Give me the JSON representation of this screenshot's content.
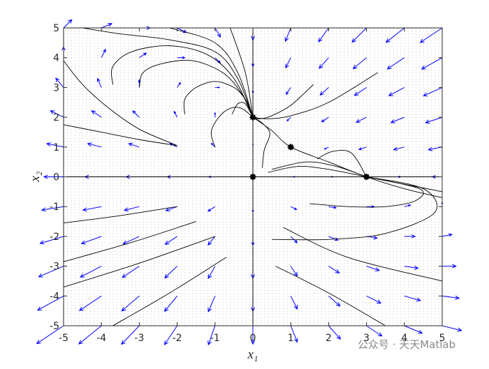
{
  "chart_data": {
    "type": "phase-portrait",
    "xlabel": "x₁",
    "ylabel": "x₂",
    "xlim": [
      -5,
      5
    ],
    "ylim": [
      -5,
      5
    ],
    "xticks": [
      -5,
      -4,
      -3,
      -2,
      -1,
      0,
      1,
      2,
      3,
      4,
      5
    ],
    "yticks": [
      -5,
      -4,
      -3,
      -2,
      -1,
      0,
      1,
      2,
      3,
      4,
      5
    ],
    "quiver_color": "#0000ff",
    "trajectory_color": "#000000",
    "quiver": {
      "x": [
        -5,
        -4,
        -3,
        -2,
        -1,
        0,
        1,
        2,
        3,
        4,
        5
      ],
      "y": [
        -5,
        -4,
        -3,
        -2,
        -1,
        0,
        1,
        2,
        3,
        4,
        5
      ],
      "u": [
        [
          -90,
          -68,
          -48,
          -30,
          -14,
          0,
          12,
          22,
          30,
          36,
          40
        ],
        [
          -80,
          -60,
          -42,
          -26,
          -12,
          0,
          10,
          18,
          24,
          28,
          30
        ],
        [
          -70,
          -52,
          -36,
          -22,
          -10,
          0,
          8,
          14,
          18,
          20,
          20
        ],
        [
          -60,
          -44,
          -30,
          -18,
          -8,
          0,
          6,
          10,
          12,
          12,
          10
        ],
        [
          -50,
          -36,
          -24,
          -14,
          -6,
          0,
          4,
          6,
          6,
          4,
          0
        ],
        [
          -40,
          -28,
          -18,
          -10,
          -4,
          0,
          2,
          2,
          0,
          -4,
          -10
        ],
        [
          -30,
          -20,
          -12,
          -6,
          -2,
          0,
          0,
          -2,
          -6,
          -12,
          -20
        ],
        [
          -20,
          -12,
          -6,
          -2,
          0,
          0,
          -2,
          -6,
          -12,
          -20,
          -30
        ],
        [
          -10,
          -4,
          0,
          2,
          2,
          0,
          -4,
          -10,
          -18,
          -28,
          -40
        ],
        [
          0,
          4,
          6,
          6,
          4,
          0,
          -6,
          -14,
          -24,
          -36,
          -50
        ],
        [
          10,
          12,
          12,
          10,
          6,
          0,
          -8,
          -18,
          -30,
          -44,
          -60
        ]
      ],
      "v": [
        [
          -60,
          -55,
          -50,
          -45,
          -40,
          -35,
          -30,
          -25,
          -20,
          -15,
          -10
        ],
        [
          -44,
          -40,
          -36,
          -32,
          -28,
          -24,
          -20,
          -16,
          -12,
          -8,
          -4
        ],
        [
          -30,
          -27,
          -24,
          -21,
          -18,
          -15,
          -12,
          -9,
          -6,
          -3,
          0
        ],
        [
          -18,
          -16,
          -14,
          -12,
          -10,
          -8,
          -6,
          -4,
          -2,
          0,
          2
        ],
        [
          -8,
          -7,
          -6,
          -5,
          -4,
          -3,
          -2,
          -1,
          0,
          1,
          2
        ],
        [
          0,
          0,
          0,
          0,
          0,
          0,
          0,
          0,
          0,
          0,
          0
        ],
        [
          6,
          5,
          4,
          3,
          2,
          1,
          0,
          -1,
          -2,
          -3,
          -4
        ],
        [
          10,
          8,
          6,
          4,
          2,
          0,
          -2,
          -4,
          -6,
          -8,
          -10
        ],
        [
          12,
          9,
          6,
          3,
          0,
          -3,
          -6,
          -9,
          -12,
          -15,
          -18
        ],
        [
          12,
          8,
          4,
          0,
          -4,
          -8,
          -12,
          -16,
          -20,
          -24,
          -28
        ],
        [
          10,
          5,
          0,
          -5,
          -10,
          -15,
          -20,
          -25,
          -30,
          -35,
          -40
        ]
      ]
    },
    "trajectories": [
      {
        "x": [
          0,
          0
        ],
        "y": [
          -5,
          5
        ]
      },
      {
        "x": [
          -5,
          5
        ],
        "y": [
          0,
          0
        ]
      },
      {
        "x": [
          -1,
          -1.1,
          -0.9,
          -0.6,
          -0.3,
          0
        ],
        "y": [
          1,
          1.5,
          2.0,
          2.3,
          2.3,
          2
        ]
      },
      {
        "x": [
          -0.55,
          -0.4,
          -0.2,
          0
        ],
        "y": [
          2.1,
          2.45,
          2.45,
          2
        ]
      },
      {
        "x": [
          -1.8,
          -1.8,
          -1.5,
          -1.0,
          -0.5,
          -0.2,
          0
        ],
        "y": [
          2.1,
          2.6,
          3.0,
          3.2,
          3.0,
          2.6,
          2
        ]
      },
      {
        "x": [
          -3,
          -2.9,
          -2.4,
          -1.6,
          -0.8,
          -0.3,
          0
        ],
        "y": [
          3,
          3.5,
          3.8,
          3.9,
          3.5,
          2.8,
          2
        ]
      },
      {
        "x": [
          -3.7,
          -3.7,
          -3.2,
          -2.2,
          -1.2,
          -0.5,
          0
        ],
        "y": [
          3.1,
          3.7,
          4.2,
          4.4,
          4.1,
          3.3,
          2
        ]
      },
      {
        "x": [
          -4.5,
          -3.5,
          -2.2,
          -1.0,
          -0.4,
          0
        ],
        "y": [
          5,
          4.8,
          4.6,
          4.2,
          3.3,
          2
        ]
      },
      {
        "x": [
          -2.2,
          -1.0,
          -0.4,
          0
        ],
        "y": [
          5,
          4.5,
          3.5,
          2
        ]
      },
      {
        "x": [
          -0.6,
          -0.2,
          0
        ],
        "y": [
          5,
          3.5,
          2
        ]
      },
      {
        "x": [
          -5,
          -4.5,
          -3.8,
          -3.0,
          -2.0
        ],
        "y": [
          3.9,
          3.1,
          2.3,
          1.6,
          1.05
        ]
      },
      {
        "x": [
          -5,
          -4,
          -3,
          -2
        ],
        "y": [
          1.75,
          1.5,
          1.25,
          1.05
        ]
      },
      {
        "x": [
          0,
          0.5,
          1,
          2,
          3,
          4,
          5
        ],
        "y": [
          2,
          1.55,
          1,
          0.5,
          0,
          -0.4,
          -0.7
        ]
      },
      {
        "x": [
          3.3,
          2.0,
          1.0,
          0.4,
          0
        ],
        "y": [
          3.5,
          2.5,
          2.05,
          1.95,
          2
        ]
      },
      {
        "x": [
          1.6,
          1.0,
          0.5,
          0.2,
          0
        ],
        "y": [
          3.1,
          2.4,
          2.05,
          1.95,
          2
        ]
      },
      {
        "x": [
          0.25,
          0.3,
          0.45,
          0.25,
          0
        ],
        "y": [
          0.3,
          0.9,
          1.45,
          1.8,
          2
        ]
      },
      {
        "x": [
          0.4,
          1.2,
          2.0,
          3
        ],
        "y": [
          0.15,
          0.35,
          0.25,
          0
        ]
      },
      {
        "x": [
          0.5,
          1.4,
          2.2,
          3
        ],
        "y": [
          0.25,
          0.5,
          0.35,
          0
        ]
      },
      {
        "x": [
          1.7,
          2.1,
          2.6,
          3
        ],
        "y": [
          0.6,
          0.85,
          0.8,
          0
        ]
      },
      {
        "x": [
          1.5,
          2.5,
          3.5,
          4.3,
          4.4,
          3
        ],
        "y": [
          -0.9,
          -1.0,
          -1.0,
          -0.8,
          -0.4,
          0
        ]
      },
      {
        "x": [
          0.5,
          2,
          3.5,
          4.8,
          4.5,
          3
        ],
        "y": [
          -2.1,
          -2.1,
          -1.9,
          -1.2,
          -0.4,
          0
        ]
      },
      {
        "x": [
          5,
          4,
          3
        ],
        "y": [
          -0.5,
          -0.25,
          0
        ]
      },
      {
        "x": [
          -2,
          -3.5,
          -5
        ],
        "y": [
          -1.0,
          -1.3,
          -1.55
        ]
      },
      {
        "x": [
          -1.5,
          -3.2,
          -5
        ],
        "y": [
          -1.5,
          -2.2,
          -2.85
        ]
      },
      {
        "x": [
          -1,
          -3,
          -5
        ],
        "y": [
          -2,
          -2.9,
          -3.7
        ]
      },
      {
        "x": [
          -0.7,
          -2.2,
          -3.7
        ],
        "y": [
          -2.7,
          -3.9,
          -5
        ]
      },
      {
        "x": [
          0.8,
          2.5,
          5
        ],
        "y": [
          -1.7,
          -2.7,
          -3.5
        ]
      },
      {
        "x": [
          0.6,
          2.0,
          3.5
        ],
        "y": [
          -3.0,
          -3.9,
          -5
        ]
      }
    ],
    "equilibria": {
      "x": [
        0,
        0,
        1,
        3
      ],
      "y": [
        0,
        2,
        1,
        0
      ]
    },
    "watermark": "公众号 · 天天Matlab"
  }
}
